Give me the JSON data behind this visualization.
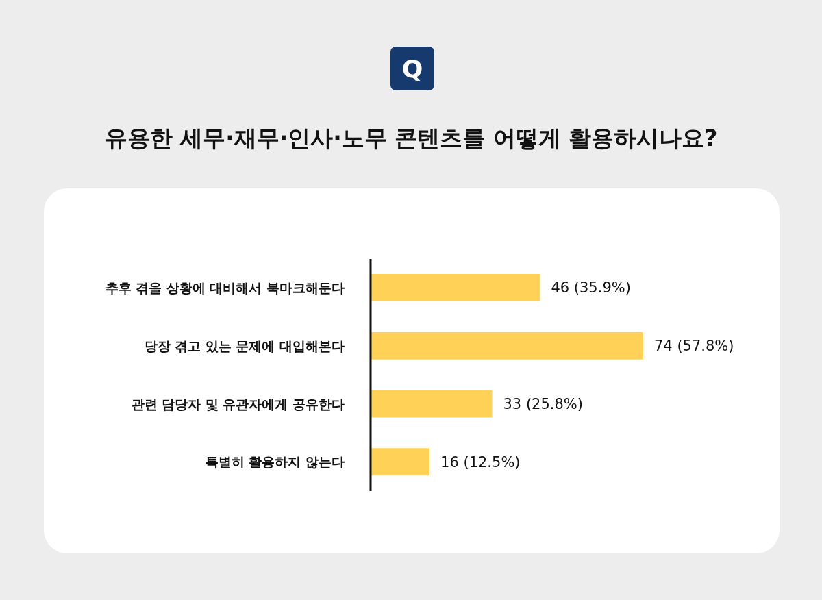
{
  "chart_data": {
    "type": "bar",
    "orientation": "horizontal",
    "title": "유용한 세무·재무·인사·노무 콘텐츠를 어떻게 활용하시나요?",
    "annotations": [
      "Q"
    ],
    "categories": [
      "추후 겪을 상황에 대비해서 북마크해둔다",
      "당장 겪고 있는 문제에 대입해본다",
      "관련 담당자 및 유관자에게 공유한다",
      "특별히 활용하지 않는다"
    ],
    "values": [
      46,
      74,
      33,
      16
    ],
    "value_labels": [
      "46 (35.9%)",
      "74 (57.8%)",
      "33 (25.8%)",
      "16 (12.5%)"
    ],
    "color": "#ffd257"
  }
}
